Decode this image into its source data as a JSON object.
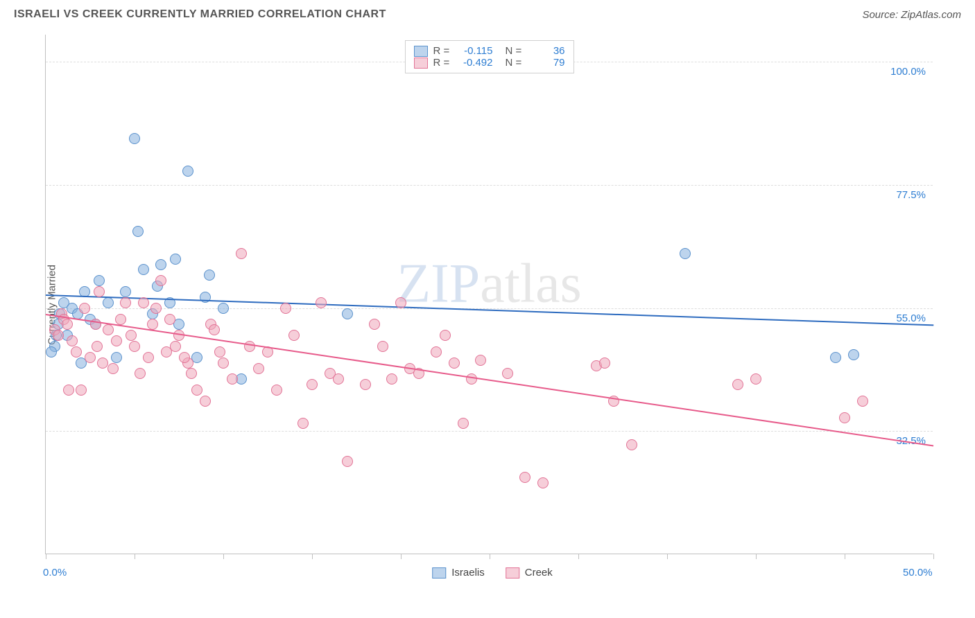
{
  "title": "ISRAELI VS CREEK CURRENTLY MARRIED CORRELATION CHART",
  "source": "Source: ZipAtlas.com",
  "watermark": {
    "part1": "ZIP",
    "part2": "atlas"
  },
  "chart": {
    "type": "scatter",
    "ylabel": "Currently Married",
    "background_color": "#ffffff",
    "grid_color": "#dddddd",
    "axis_color": "#c0c0c0",
    "x": {
      "min": 0,
      "max": 50,
      "ticks_at": [
        0,
        5,
        10,
        15,
        20,
        25,
        30,
        35,
        40,
        45,
        50
      ],
      "labels": [
        {
          "at": 0,
          "text": "0.0%"
        },
        {
          "at": 50,
          "text": "50.0%"
        }
      ],
      "label_color": "#2d7dd2",
      "tick_label_fontsize": 15
    },
    "y": {
      "min": 10,
      "max": 105,
      "grid_at": [
        32.5,
        55,
        77.5,
        100
      ],
      "labels": [
        {
          "at": 32.5,
          "text": "32.5%"
        },
        {
          "at": 55,
          "text": "55.0%"
        },
        {
          "at": 77.5,
          "text": "77.5%"
        },
        {
          "at": 100,
          "text": "100.0%"
        }
      ],
      "label_color": "#2d7dd2",
      "tick_label_fontsize": 15
    },
    "series": [
      {
        "name": "Israelis",
        "marker_fill": "rgba(134,176,222,0.55)",
        "marker_stroke": "#5a91cc",
        "marker_stroke_width": 1,
        "marker_size": 16,
        "points": [
          [
            0.5,
            48
          ],
          [
            0.6,
            50
          ],
          [
            0.7,
            52
          ],
          [
            0.8,
            54
          ],
          [
            1,
            56
          ],
          [
            1.2,
            50
          ],
          [
            1.5,
            55
          ],
          [
            2,
            45
          ],
          [
            2.2,
            58
          ],
          [
            2.5,
            53
          ],
          [
            2.8,
            52
          ],
          [
            3,
            60
          ],
          [
            3.5,
            56
          ],
          [
            4,
            46
          ],
          [
            4.5,
            58
          ],
          [
            5,
            86
          ],
          [
            5.2,
            69
          ],
          [
            5.5,
            62
          ],
          [
            6,
            54
          ],
          [
            6.3,
            59
          ],
          [
            6.5,
            63
          ],
          [
            7,
            56
          ],
          [
            7.3,
            64
          ],
          [
            7.5,
            52
          ],
          [
            8,
            80
          ],
          [
            8.5,
            46
          ],
          [
            9,
            57
          ],
          [
            9.2,
            61
          ],
          [
            10,
            55
          ],
          [
            11,
            42
          ],
          [
            17,
            54
          ],
          [
            36,
            65
          ],
          [
            44.5,
            46
          ],
          [
            45.5,
            46.5
          ],
          [
            0.3,
            47
          ],
          [
            1.8,
            54
          ]
        ],
        "trend": {
          "y_at_xmin": 57.5,
          "y_at_xmax": 52.0,
          "color": "#2d6bbf",
          "width": 2
        },
        "legend": {
          "R": "-0.115",
          "N": "36"
        }
      },
      {
        "name": "Creek",
        "marker_fill": "rgba(238,165,186,0.55)",
        "marker_stroke": "#e27396",
        "marker_stroke_width": 1,
        "marker_size": 16,
        "points": [
          [
            0.5,
            51
          ],
          [
            0.7,
            50
          ],
          [
            0.9,
            54
          ],
          [
            1,
            53
          ],
          [
            1.2,
            52
          ],
          [
            1.5,
            49
          ],
          [
            1.7,
            47
          ],
          [
            2,
            40
          ],
          [
            2.2,
            55
          ],
          [
            2.5,
            46
          ],
          [
            2.8,
            52
          ],
          [
            3,
            58
          ],
          [
            3.2,
            45
          ],
          [
            3.5,
            51
          ],
          [
            4,
            49
          ],
          [
            4.2,
            53
          ],
          [
            4.5,
            56
          ],
          [
            5,
            48
          ],
          [
            5.3,
            43
          ],
          [
            5.5,
            56
          ],
          [
            6,
            52
          ],
          [
            6.2,
            55
          ],
          [
            6.5,
            60
          ],
          [
            7,
            53
          ],
          [
            7.3,
            48
          ],
          [
            7.5,
            50
          ],
          [
            8,
            45
          ],
          [
            8.2,
            43
          ],
          [
            8.5,
            40
          ],
          [
            9,
            38
          ],
          [
            9.3,
            52
          ],
          [
            9.5,
            51
          ],
          [
            10,
            45
          ],
          [
            10.5,
            42
          ],
          [
            11,
            65
          ],
          [
            11.5,
            48
          ],
          [
            12,
            44
          ],
          [
            13,
            40
          ],
          [
            14,
            50
          ],
          [
            15,
            41
          ],
          [
            15.5,
            56
          ],
          [
            16,
            43
          ],
          [
            16.5,
            42
          ],
          [
            17,
            27
          ],
          [
            18,
            41
          ],
          [
            19,
            48
          ],
          [
            20,
            56
          ],
          [
            20.5,
            44
          ],
          [
            21,
            43
          ],
          [
            22,
            47
          ],
          [
            22.5,
            50
          ],
          [
            23,
            45
          ],
          [
            23.5,
            34
          ],
          [
            24,
            42
          ],
          [
            26,
            43
          ],
          [
            27,
            24
          ],
          [
            28,
            23
          ],
          [
            31,
            44.5
          ],
          [
            31.5,
            45
          ],
          [
            32,
            38
          ],
          [
            33,
            30
          ],
          [
            39,
            41
          ],
          [
            40,
            42
          ],
          [
            45,
            35
          ],
          [
            46,
            38
          ],
          [
            3.8,
            44
          ],
          [
            5.8,
            46
          ],
          [
            14.5,
            34
          ],
          [
            18.5,
            52
          ],
          [
            13.5,
            55
          ],
          [
            24.5,
            45.5
          ],
          [
            12.5,
            47
          ],
          [
            6.8,
            47
          ],
          [
            7.8,
            46
          ],
          [
            1.3,
            40
          ],
          [
            2.9,
            48
          ],
          [
            4.8,
            50
          ],
          [
            19.5,
            42
          ],
          [
            9.8,
            47
          ]
        ],
        "trend": {
          "y_at_xmin": 54.0,
          "y_at_xmax": 30.0,
          "color": "#e75a8a",
          "width": 2
        },
        "legend": {
          "R": "-0.492",
          "N": "79"
        }
      }
    ],
    "legend_top": {
      "R_label": "R =",
      "N_label": "N =",
      "value_color": "#2d7dd2",
      "label_color": "#555555",
      "box_border": "#d0d0d0"
    },
    "legend_bottom": {
      "items": [
        "Israelis",
        "Creek"
      ]
    }
  }
}
